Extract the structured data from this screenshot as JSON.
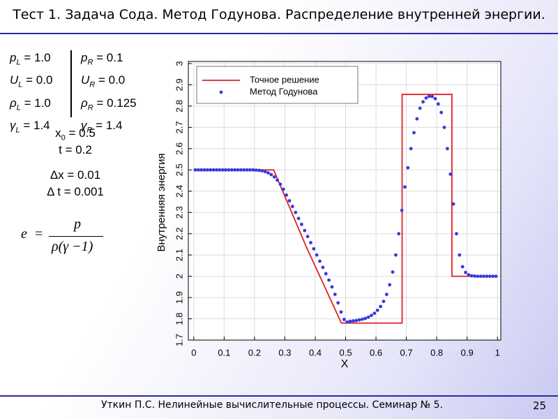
{
  "slide": {
    "title": "Тест 1. Задача Сода. Метод Годунова. Распределение внутренней энергии.",
    "footer": "Уткин П.С. Нелинейные  вычислительные  процессы. Семинар  №  5.",
    "page": "25"
  },
  "params": {
    "left": [
      {
        "symbol": "p",
        "sub": "L",
        "text": " = 1.0"
      },
      {
        "symbol": "U",
        "sub": "L",
        "text": " = 0.0"
      },
      {
        "symbol": "ρ",
        "sub": "L",
        "text": " = 1.0"
      },
      {
        "symbol": "γ",
        "sub": "L",
        "text": " = 1.4"
      }
    ],
    "right": [
      {
        "symbol": "p",
        "sub": "R",
        "text": " = 0.1"
      },
      {
        "symbol": "U",
        "sub": "R",
        "text": " = 0.0"
      },
      {
        "symbol": "ρ",
        "sub": "R",
        "text": " = 0.125"
      },
      {
        "symbol": "γ",
        "sub": "R",
        "text": " = 1.4"
      }
    ],
    "x0": {
      "symbol": "x",
      "sub": "0",
      "text": " = 0.5"
    },
    "t": "t = 0.2",
    "dx": "Δx = 0.01",
    "dt": "Δ t = 0.001"
  },
  "formula": {
    "lhs": "e",
    "equals": "=",
    "numerator": "p",
    "denominator": "ρ(γ −1)"
  },
  "chart_data": {
    "type": "line",
    "xlabel": "X",
    "ylabel": "Внутренняя энергия",
    "xlim": [
      -0.018,
      1.011
    ],
    "ylim": [
      1.7,
      3
    ],
    "xticks": [
      0,
      0.1,
      0.2,
      0.3,
      0.4,
      0.5,
      0.6,
      0.7,
      0.8,
      0.9,
      1
    ],
    "yticks": [
      1.7,
      1.8,
      1.9,
      2,
      2.1,
      2.2,
      2.3,
      2.4,
      2.5,
      2.6,
      2.7,
      2.8,
      2.9,
      3
    ],
    "grid": true,
    "legend": "upper left",
    "series": [
      {
        "name": "Точное решение",
        "color": "#e02020",
        "kind": "line",
        "x": [
          0,
          0.263,
          0.37,
          0.486,
          0.686,
          0.686,
          0.85,
          0.85,
          1
        ],
        "values": [
          2.5,
          2.5,
          2.14,
          1.78,
          1.78,
          2.855,
          2.855,
          2.0,
          2.0
        ]
      },
      {
        "name": "Метод Годунова",
        "color": "#3838e0",
        "kind": "scatter",
        "x": [
          0.005,
          0.015,
          0.025,
          0.035,
          0.045,
          0.055,
          0.065,
          0.075,
          0.085,
          0.095,
          0.105,
          0.115,
          0.125,
          0.135,
          0.145,
          0.155,
          0.165,
          0.175,
          0.185,
          0.195,
          0.205,
          0.215,
          0.225,
          0.235,
          0.245,
          0.255,
          0.265,
          0.275,
          0.285,
          0.295,
          0.305,
          0.315,
          0.325,
          0.335,
          0.345,
          0.355,
          0.365,
          0.375,
          0.385,
          0.395,
          0.405,
          0.415,
          0.425,
          0.435,
          0.445,
          0.455,
          0.465,
          0.475,
          0.485,
          0.495,
          0.505,
          0.515,
          0.525,
          0.535,
          0.545,
          0.555,
          0.565,
          0.575,
          0.585,
          0.595,
          0.605,
          0.615,
          0.625,
          0.635,
          0.645,
          0.655,
          0.665,
          0.675,
          0.685,
          0.695,
          0.705,
          0.715,
          0.725,
          0.735,
          0.745,
          0.755,
          0.765,
          0.775,
          0.785,
          0.795,
          0.805,
          0.815,
          0.825,
          0.835,
          0.845,
          0.855,
          0.865,
          0.875,
          0.885,
          0.895,
          0.905,
          0.915,
          0.925,
          0.935,
          0.945,
          0.955,
          0.965,
          0.975,
          0.985,
          0.995
        ],
        "values": [
          2.5,
          2.5,
          2.5,
          2.5,
          2.5,
          2.5,
          2.5,
          2.5,
          2.5,
          2.5,
          2.5,
          2.5,
          2.5,
          2.5,
          2.5,
          2.5,
          2.5,
          2.5,
          2.5,
          2.5,
          2.499,
          2.498,
          2.496,
          2.492,
          2.486,
          2.478,
          2.467,
          2.452,
          2.433,
          2.409,
          2.382,
          2.355,
          2.328,
          2.3,
          2.272,
          2.244,
          2.215,
          2.187,
          2.158,
          2.129,
          2.1,
          2.071,
          2.042,
          2.012,
          1.982,
          1.95,
          1.915,
          1.875,
          1.832,
          1.797,
          1.785,
          1.788,
          1.79,
          1.792,
          1.795,
          1.798,
          1.802,
          1.808,
          1.816,
          1.826,
          1.84,
          1.858,
          1.882,
          1.915,
          1.96,
          2.02,
          2.1,
          2.2,
          2.31,
          2.42,
          2.51,
          2.6,
          2.675,
          2.74,
          2.79,
          2.82,
          2.838,
          2.846,
          2.845,
          2.835,
          2.81,
          2.77,
          2.7,
          2.6,
          2.48,
          2.34,
          2.2,
          2.1,
          2.045,
          2.018,
          2.007,
          2.002,
          2.001,
          2.0,
          2.0,
          2.0,
          2.0,
          2.0,
          2.0,
          2.0
        ]
      }
    ]
  }
}
